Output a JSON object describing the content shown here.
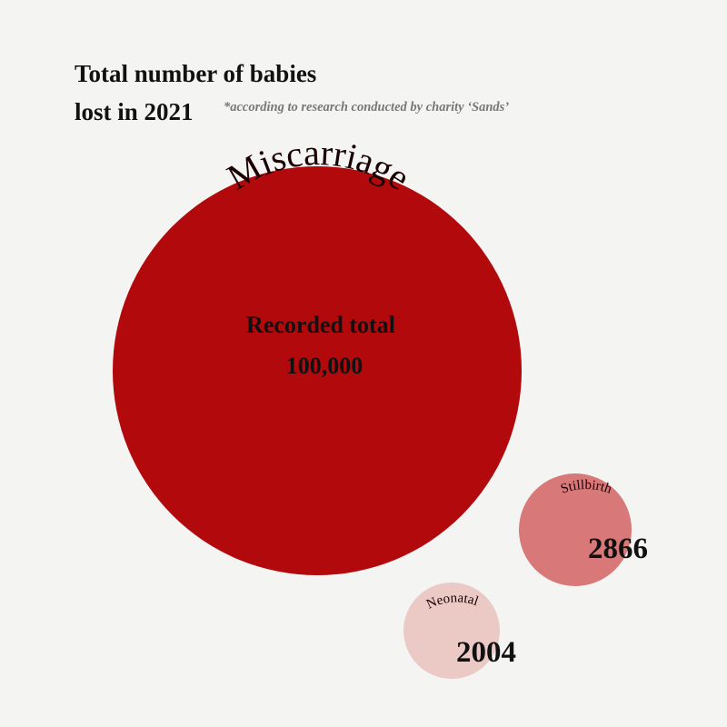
{
  "chart_data": {
    "type": "bubble",
    "title": [
      "Total number of babies",
      "lost in 2021"
    ],
    "subtitle": "*according to research conducted by charity ‘Sands’",
    "series": [
      {
        "name": "Miscarriage",
        "label": "Recorded total",
        "display_value": "100,000",
        "value": 100000,
        "color": "#b1090c"
      },
      {
        "name": "Stillbirth",
        "label": "",
        "display_value": "2866",
        "value": 2866,
        "color": "#d97878"
      },
      {
        "name": "Neonatal",
        "label": "",
        "display_value": "2004",
        "value": 2004,
        "color": "#ebcac6"
      }
    ]
  }
}
